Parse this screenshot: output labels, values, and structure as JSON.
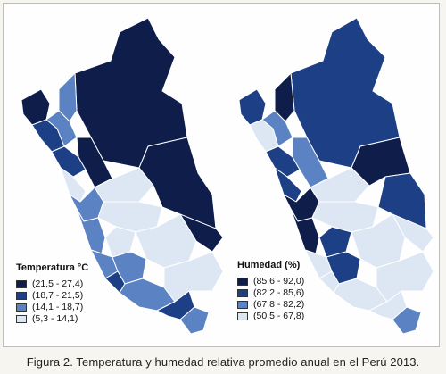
{
  "caption": "Figura 2. Temperatura y humedad relativa promedio anual en el Perú 2013.",
  "colors": {
    "class1": "#0e1d4a",
    "class2": "#1d3f85",
    "class3": "#5b83c3",
    "class4": "#dde7f4",
    "border": "#ffffff",
    "outline": "#222222"
  },
  "maps": [
    {
      "id": "temperature",
      "legend_title": "Temperatura °C",
      "legend": [
        {
          "label": "(21,5 - 27,4)",
          "class": "class1"
        },
        {
          "label": "(18,7 - 21,5)",
          "class": "class2"
        },
        {
          "label": "(14,1 - 18,7)",
          "class": "class3"
        },
        {
          "label": "(5,3 - 14,1)",
          "class": "class4"
        }
      ]
    },
    {
      "id": "humidity",
      "legend_title": "Humedad (%)",
      "legend": [
        {
          "label": "(85,6 - 92,0)",
          "class": "class1"
        },
        {
          "label": "(82,2 - 85,6)",
          "class": "class2"
        },
        {
          "label": "(67,8 - 82,2)",
          "class": "class3"
        },
        {
          "label": "(50,5 - 67,8)",
          "class": "class4"
        }
      ]
    }
  ]
}
